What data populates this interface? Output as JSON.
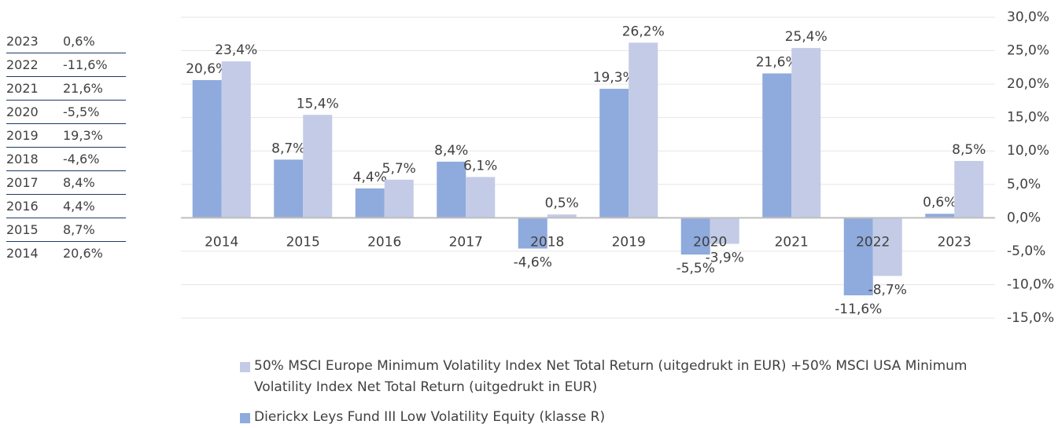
{
  "table": {
    "rows": [
      [
        "2023",
        "0,6%"
      ],
      [
        "2022",
        "-11,6%"
      ],
      [
        "2021",
        "21,6%"
      ],
      [
        "2020",
        "-5,5%"
      ],
      [
        "2019",
        "19,3%"
      ],
      [
        "2018",
        "-4,6%"
      ],
      [
        "2017",
        "8,4%"
      ],
      [
        "2016",
        "4,4%"
      ],
      [
        "2015",
        "8,7%"
      ],
      [
        "2014",
        "20,6%"
      ]
    ]
  },
  "chart_data": {
    "type": "bar",
    "categories": [
      "2014",
      "2015",
      "2016",
      "2017",
      "2018",
      "2019",
      "2020",
      "2021",
      "2022",
      "2023"
    ],
    "series": [
      {
        "name": "50% MSCI Europe Minimum Volatility Index Net Total Return (uitgedrukt in EUR) +50% MSCI USA Minimum Volatility Index Net Total Return (uitgedrukt in EUR)",
        "color": "#c3cbe7",
        "values": [
          23.4,
          15.4,
          5.7,
          6.1,
          0.5,
          26.2,
          -3.9,
          25.4,
          -8.7,
          8.5
        ],
        "value_labels": [
          "23,4%",
          "15,4%",
          "5,7%",
          "6,1%",
          "0,5%",
          "26,2%",
          "-3,9%",
          "25,4%",
          "-8,7%",
          "8,5%"
        ]
      },
      {
        "name": "Dierickx Leys Fund III Low Volatility Equity (klasse R)",
        "color": "#8faadc",
        "values": [
          20.6,
          8.7,
          4.4,
          8.4,
          -4.6,
          19.3,
          -5.5,
          21.6,
          -11.6,
          0.6
        ],
        "value_labels": [
          "20,6%",
          "8,7%",
          "4,4%",
          "8,4%",
          "-4,6%",
          "19,3%",
          "-5,5%",
          "21,6%",
          "-11,6%",
          "0,6%"
        ]
      }
    ],
    "ylim": [
      -15,
      30
    ],
    "yticks": [
      {
        "value": -15,
        "label": "-15,0%"
      },
      {
        "value": -10,
        "label": "-10,0%"
      },
      {
        "value": -5,
        "label": "-5,0%"
      },
      {
        "value": 0,
        "label": "0,0%"
      },
      {
        "value": 5,
        "label": "5,0%"
      },
      {
        "value": 10,
        "label": "10,0%"
      },
      {
        "value": 15,
        "label": "15,0%"
      },
      {
        "value": 20,
        "label": "20,0%"
      },
      {
        "value": 25,
        "label": "25,0%"
      },
      {
        "value": 30,
        "label": "30,0%"
      }
    ],
    "grid": true
  }
}
